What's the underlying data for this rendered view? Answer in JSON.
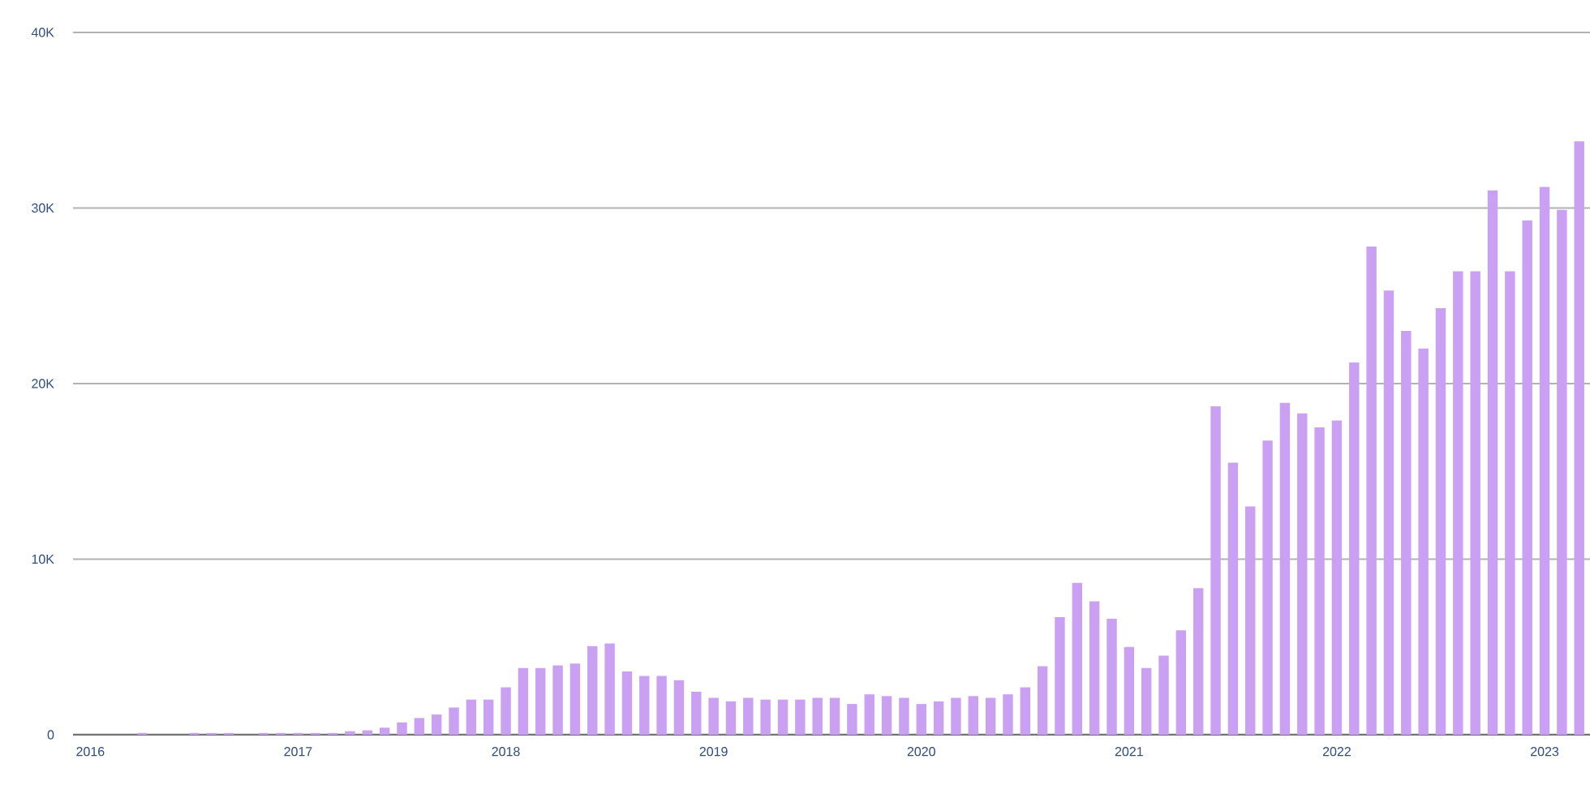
{
  "chart_data": {
    "type": "bar",
    "color": "#c9a0f2",
    "x": [
      "2016-04",
      "2016-07",
      "2016-08",
      "2016-09",
      "2016-11",
      "2016-12",
      "2017-01",
      "2017-02",
      "2017-03",
      "2017-04",
      "2017-05",
      "2017-06",
      "2017-07",
      "2017-08",
      "2017-09",
      "2017-10",
      "2017-11",
      "2017-12",
      "2018-01",
      "2018-02",
      "2018-03",
      "2018-04",
      "2018-05",
      "2018-06",
      "2018-07",
      "2018-08",
      "2018-09",
      "2018-10",
      "2018-11",
      "2018-12",
      "2019-01",
      "2019-02",
      "2019-03",
      "2019-04",
      "2019-05",
      "2019-06",
      "2019-07",
      "2019-08",
      "2019-09",
      "2019-10",
      "2019-11",
      "2019-12",
      "2020-01",
      "2020-02",
      "2020-03",
      "2020-04",
      "2020-05",
      "2020-06",
      "2020-07",
      "2020-08",
      "2020-09",
      "2020-10",
      "2020-11",
      "2020-12",
      "2021-01",
      "2021-02",
      "2021-03",
      "2021-04",
      "2021-05",
      "2021-06",
      "2021-07",
      "2021-08",
      "2021-09",
      "2021-10",
      "2021-11",
      "2021-12",
      "2022-01",
      "2022-02",
      "2022-03",
      "2022-04",
      "2022-05",
      "2022-06",
      "2022-07",
      "2022-08",
      "2022-09",
      "2022-10",
      "2022-11",
      "2022-12",
      "2023-01",
      "2023-02",
      "2023-03"
    ],
    "values": [
      100,
      100,
      100,
      100,
      100,
      100,
      100,
      100,
      100,
      200,
      250,
      400,
      700,
      950,
      1150,
      1550,
      2000,
      2000,
      2700,
      3800,
      3800,
      3950,
      4050,
      5050,
      5200,
      3600,
      3350,
      3350,
      3100,
      2450,
      2100,
      1900,
      2100,
      2000,
      2000,
      2000,
      2100,
      2100,
      1750,
      2300,
      2200,
      2100,
      1750,
      1900,
      2100,
      2200,
      2100,
      2300,
      2700,
      3900,
      6700,
      8650,
      7600,
      6600,
      5000,
      3800,
      4500,
      5950,
      8350,
      18700,
      15500,
      13000,
      16750,
      18900,
      18300,
      17500,
      17900,
      21200,
      27800,
      25300,
      23000,
      22000,
      24300,
      26400,
      26400,
      31000,
      26400,
      29300,
      31200,
      29900,
      33800
    ],
    "xlim": [
      "2015-12-01",
      "2023-03-20"
    ],
    "xticks": [
      "2016",
      "2017",
      "2018",
      "2019",
      "2020",
      "2021",
      "2022",
      "2023"
    ],
    "ylim": [
      0,
      40000
    ],
    "yticks": [
      0,
      {
        "value": 10000,
        "label": "10K"
      },
      {
        "value": 20000,
        "label": "20K"
      },
      {
        "value": 30000,
        "label": "30K"
      },
      {
        "value": 40000,
        "label": "40K"
      }
    ],
    "grid": "y"
  }
}
